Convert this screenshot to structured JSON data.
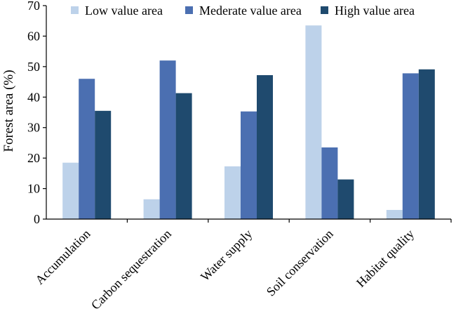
{
  "chart_data": {
    "type": "bar",
    "title": "",
    "xlabel": "",
    "ylabel": "Forest area (%)",
    "ylim": [
      0,
      70
    ],
    "yticks": [
      0,
      10,
      20,
      30,
      40,
      50,
      60,
      70
    ],
    "grid": false,
    "legend_position": "top",
    "categories": [
      "Accumulation",
      "Carbon sequestration",
      "Water supply",
      "Soil conservation",
      "Habitat quality"
    ],
    "series": [
      {
        "name": "Low value area",
        "color": "#bdd2ea",
        "values": [
          18.5,
          6.5,
          17.3,
          63.5,
          3.0
        ]
      },
      {
        "name": "Mederate value area",
        "color": "#4b6fb1",
        "values": [
          46.0,
          52.0,
          35.3,
          23.5,
          47.8
        ]
      },
      {
        "name": "High value area",
        "color": "#1f4a6e",
        "values": [
          35.5,
          41.3,
          47.2,
          13.0,
          49.1
        ]
      }
    ]
  }
}
